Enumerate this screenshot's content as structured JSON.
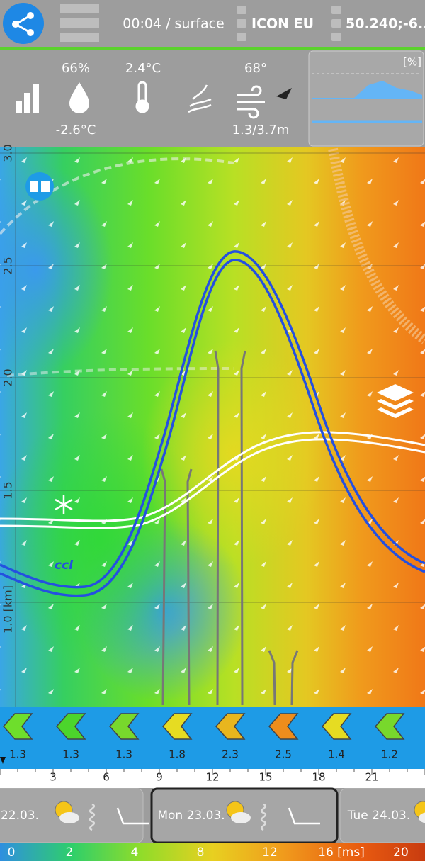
{
  "top_bar": {
    "time_level": "00:04 / surface",
    "model": "ICON EU",
    "location": "50.240;-6..."
  },
  "info_panel": {
    "humidity": "66%",
    "dew_point": "-2.6°C",
    "temperature": "2.4°C",
    "wind_direction": "68°",
    "wind_speed": "1.3/3.7m",
    "mini_chart_unit": "[%]"
  },
  "profile": {
    "height_labels": [
      "3.0",
      "2.5",
      "2.0",
      "1.5",
      "1.0 [km]"
    ],
    "ccl_label": "ccl"
  },
  "wind_row": {
    "values": [
      "1.3",
      "1.3",
      "1.3",
      "1.8",
      "2.3",
      "2.5",
      "1.4",
      "1.2"
    ],
    "colors": [
      "#6ede2c",
      "#4cd52c",
      "#78d82c",
      "#e6dc22",
      "#e8b61e",
      "#ee8d1c",
      "#e6dc22",
      "#78d82c"
    ]
  },
  "hour_axis": {
    "labels": [
      "3",
      "6",
      "9",
      "12",
      "15",
      "18",
      "21"
    ]
  },
  "day_tabs": {
    "days": [
      "22.03.",
      "Mon 23.03.",
      "Tue 24.03."
    ],
    "selected": 1
  },
  "color_scale": {
    "labels": [
      "0",
      "2",
      "4",
      "8",
      "12",
      "16 [ms]",
      "20"
    ]
  }
}
